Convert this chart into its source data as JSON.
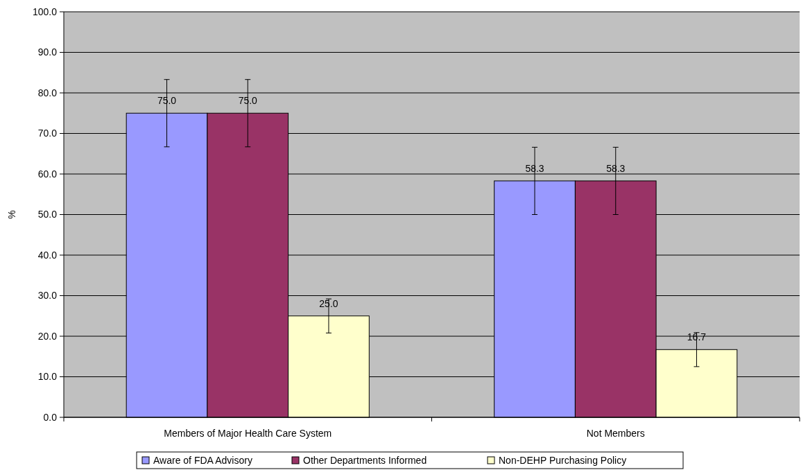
{
  "chart_data": {
    "type": "bar",
    "ylabel": "%",
    "categories": [
      "Members of Major Health Care System",
      "Not Members"
    ],
    "series": [
      {
        "name": "Aware of FDA Advisory",
        "color": "#9999ff",
        "values": [
          75.0,
          58.3
        ],
        "value_labels": [
          "75.0",
          "58.3"
        ],
        "errors": [
          8.3,
          8.3
        ]
      },
      {
        "name": "Other Departments Informed",
        "color": "#993366",
        "values": [
          75.0,
          58.3
        ],
        "value_labels": [
          "75.0",
          "58.3"
        ],
        "errors": [
          8.3,
          8.3
        ]
      },
      {
        "name": "Non-DEHP Purchasing Policy",
        "color": "#ffffcc",
        "values": [
          25.0,
          16.7
        ],
        "value_labels": [
          "25.0",
          "16.7"
        ],
        "errors": [
          4.2,
          4.2
        ]
      }
    ],
    "ylim": [
      0,
      100
    ],
    "yticks": [
      {
        "value": 0,
        "label": "0.0"
      },
      {
        "value": 10,
        "label": "10.0"
      },
      {
        "value": 20,
        "label": "20.0"
      },
      {
        "value": 30,
        "label": "30.0"
      },
      {
        "value": 40,
        "label": "40.0"
      },
      {
        "value": 50,
        "label": "50.0"
      },
      {
        "value": 60,
        "label": "60.0"
      },
      {
        "value": 70,
        "label": "70.0"
      },
      {
        "value": 80,
        "label": "80.0"
      },
      {
        "value": 90,
        "label": "90.0"
      },
      {
        "value": 100,
        "label": "100.0"
      }
    ],
    "grid": "y",
    "legend": "bottom"
  }
}
